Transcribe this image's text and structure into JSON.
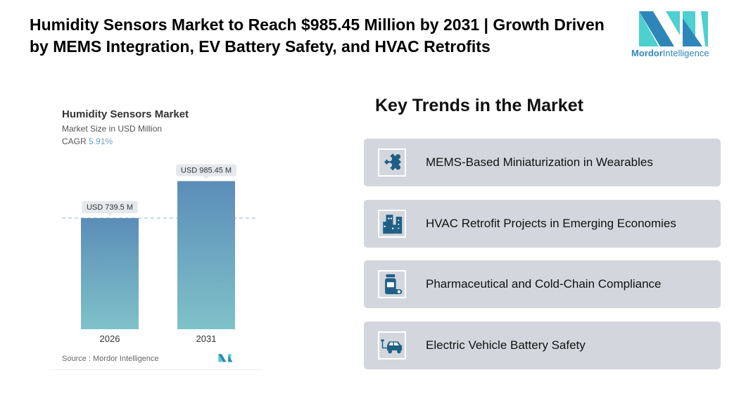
{
  "header": {
    "title": "Humidity Sensors Market to Reach $985.45 Million by 2031 | Growth Driven by MEMS Integration, EV Battery Safety, and HVAC Retrofits",
    "logo": {
      "text_bold": "Mordor",
      "text_rest": "Intelligence"
    }
  },
  "chart_card": {
    "title": "Humidity Sensors Market",
    "subtitle": "Market Size in USD Million",
    "cagr_label": "CAGR",
    "cagr_value": "5.91%",
    "source": "Source :  Mordor Intelligence"
  },
  "chart_data": {
    "type": "bar",
    "title": "Humidity Sensors Market",
    "ylabel": "Market Size in USD Million",
    "categories": [
      "2026",
      "2031"
    ],
    "values": [
      739.5,
      985.45
    ],
    "data_labels": [
      "USD 739.5 M",
      "USD 985.45 M"
    ],
    "reference_line": 739.5,
    "grid": false,
    "colors": {
      "top": "#5b8db8",
      "bottom": "#7fc2c9"
    }
  },
  "trends": {
    "heading": "Key Trends in the Market",
    "items": [
      {
        "label": "MEMS-Based Miniaturization in Wearables",
        "icon": "puzzle-icon"
      },
      {
        "label": "HVAC Retrofit Projects in Emerging Economies",
        "icon": "buildings-icon"
      },
      {
        "label": "Pharmaceutical and Cold-Chain Compliance",
        "icon": "pill-bottle-icon"
      },
      {
        "label": "Electric Vehicle Battery Safety",
        "icon": "electric-car-icon"
      }
    ]
  },
  "colors": {
    "icon": "#1f5f86",
    "trend_bg": "#d3d7dd",
    "logo_dark": "#2e86b8",
    "logo_light": "#4ecfd0"
  }
}
